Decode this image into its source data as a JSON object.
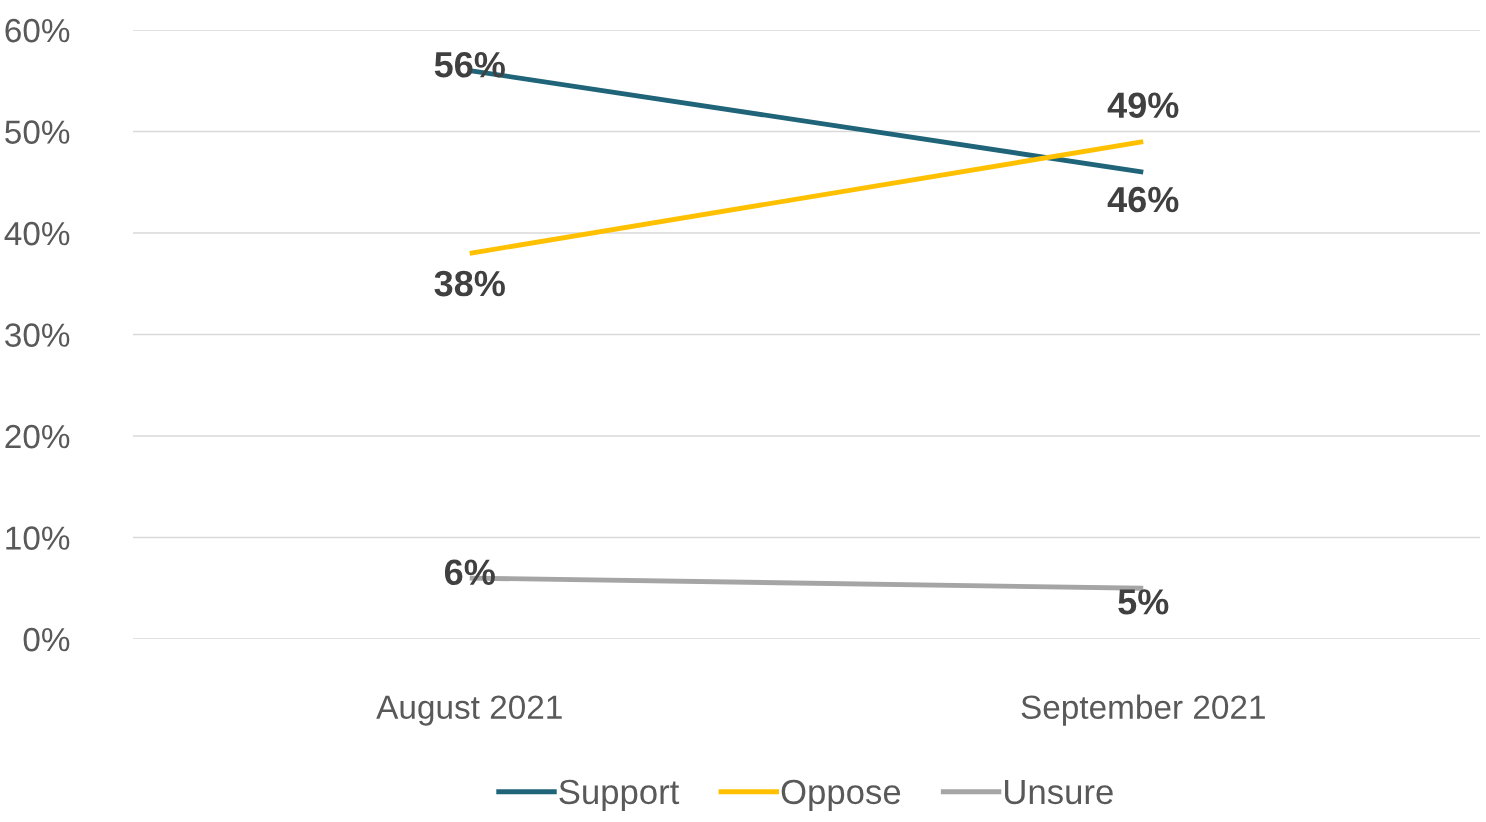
{
  "chart_data": {
    "type": "line",
    "categories": [
      "August 2021",
      "September 2021"
    ],
    "series": [
      {
        "name": "Support",
        "color": "#1f6478",
        "values": [
          56,
          46
        ],
        "value_labels": [
          "56%",
          "46%"
        ]
      },
      {
        "name": "Oppose",
        "color": "#ffc000",
        "values": [
          38,
          49
        ],
        "value_labels": [
          "38%",
          "49%"
        ]
      },
      {
        "name": "Unsure",
        "color": "#a5a5a5",
        "values": [
          6,
          5
        ],
        "value_labels": [
          "6%",
          "5%"
        ]
      }
    ],
    "ylim": [
      0,
      60
    ],
    "yticks": [
      {
        "value": 0,
        "label": "0%"
      },
      {
        "value": 10,
        "label": "10%"
      },
      {
        "value": 20,
        "label": "20%"
      },
      {
        "value": 30,
        "label": "30%"
      },
      {
        "value": 40,
        "label": "40%"
      },
      {
        "value": 50,
        "label": "50%"
      },
      {
        "value": 60,
        "label": "60%"
      }
    ],
    "grid": "y",
    "legend": "bottom",
    "marker": "none",
    "line_style": "solid"
  }
}
